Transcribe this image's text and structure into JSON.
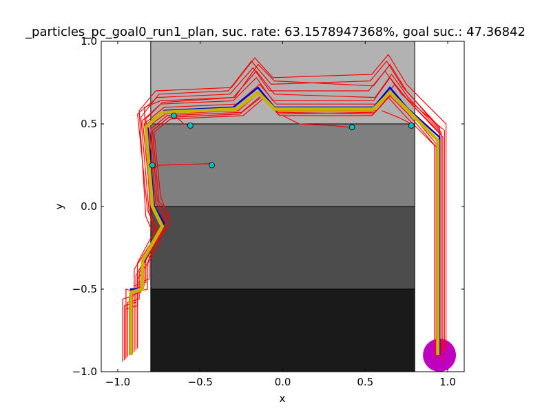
{
  "chart_data": {
    "type": "line",
    "title": "_particles_pc_goal0_run1_plan, suc. rate: 63.1578947368%, goal suc.: 47.36842",
    "xlabel": "x",
    "ylabel": "y",
    "xlim": [
      -1.1,
      1.1
    ],
    "ylim": [
      -1.0,
      1.0
    ],
    "x_ticks": [
      -1.0,
      -0.5,
      0.0,
      0.5,
      1.0
    ],
    "x_tick_labels": [
      "−1.0",
      "−0.5",
      "0.0",
      "0.5",
      "1.0"
    ],
    "y_ticks": [
      -1.0,
      -0.5,
      0.0,
      0.5,
      1.0
    ],
    "y_tick_labels": [
      "−1.0",
      "−0.5",
      "0.0",
      "0.5",
      "1.0"
    ],
    "regions": [
      {
        "name": "band-top",
        "x": [
          -0.8,
          0.8
        ],
        "y": [
          0.5,
          1.0
        ],
        "color": "#b2b2b2"
      },
      {
        "name": "band-upper-mid",
        "x": [
          -0.8,
          0.8
        ],
        "y": [
          0.0,
          0.5
        ],
        "color": "#7f7f7f"
      },
      {
        "name": "band-lower-mid",
        "x": [
          -0.8,
          0.8
        ],
        "y": [
          -0.5,
          0.0
        ],
        "color": "#4c4c4c"
      },
      {
        "name": "band-bottom",
        "x": [
          -0.8,
          0.8
        ],
        "y": [
          -1.0,
          -0.5
        ],
        "color": "#1a1a1a"
      }
    ],
    "goal": {
      "x": 0.95,
      "y": -0.9,
      "radius": 0.1,
      "color": "#c000c0"
    },
    "plan_path": {
      "x": [
        -0.92,
        -0.92,
        -0.85,
        -0.85,
        -0.72,
        -0.78,
        -0.82,
        -0.72,
        -0.3,
        -0.15,
        -0.05,
        0.55,
        0.65,
        0.75,
        0.95,
        0.95
      ],
      "y": [
        -0.9,
        -0.5,
        -0.5,
        -0.35,
        -0.1,
        0.0,
        0.5,
        0.58,
        0.6,
        0.72,
        0.6,
        0.6,
        0.72,
        0.6,
        0.42,
        -0.9
      ],
      "color": "#0000cc"
    },
    "mean_path": {
      "x": [
        -0.92,
        -0.92,
        -0.85,
        -0.85,
        -0.73,
        -0.79,
        -0.83,
        -0.73,
        -0.28,
        -0.15,
        -0.05,
        0.55,
        0.65,
        0.75,
        0.94,
        0.94
      ],
      "y": [
        -0.9,
        -0.52,
        -0.5,
        -0.33,
        -0.12,
        0.0,
        0.48,
        0.57,
        0.59,
        0.69,
        0.59,
        0.59,
        0.69,
        0.59,
        0.4,
        -0.9
      ],
      "color": "#c8b400"
    },
    "particle_paths": [
      {
        "x": [
          -0.95,
          -0.95,
          -0.88,
          -0.88,
          -0.74,
          -0.8,
          -0.85,
          -0.74,
          -0.3,
          -0.16,
          -0.06,
          0.55,
          0.65,
          0.76,
          0.96,
          0.96
        ],
        "y": [
          -0.92,
          -0.5,
          -0.52,
          -0.34,
          -0.08,
          0.02,
          0.52,
          0.62,
          0.64,
          0.78,
          0.64,
          0.64,
          0.78,
          0.64,
          0.44,
          -0.88
        ]
      },
      {
        "x": [
          -0.9,
          -0.9,
          -0.83,
          -0.83,
          -0.7,
          -0.76,
          -0.8,
          -0.7,
          -0.25,
          -0.12,
          -0.03,
          0.56,
          0.66,
          0.77,
          0.93,
          0.93
        ],
        "y": [
          -0.88,
          -0.48,
          -0.46,
          -0.3,
          -0.12,
          0.04,
          0.47,
          0.55,
          0.57,
          0.68,
          0.56,
          0.57,
          0.68,
          0.57,
          0.38,
          -0.92
        ]
      },
      {
        "x": [
          -0.97,
          -0.97,
          -0.9,
          -0.9,
          -0.76,
          -0.82,
          -0.88,
          -0.76,
          -0.32,
          -0.18,
          -0.08,
          0.52,
          0.62,
          0.72,
          0.98,
          0.98
        ],
        "y": [
          -0.94,
          -0.56,
          -0.54,
          -0.38,
          -0.16,
          -0.02,
          0.56,
          0.66,
          0.68,
          0.84,
          0.7,
          0.7,
          0.82,
          0.68,
          0.46,
          -0.86
        ]
      },
      {
        "x": [
          -0.93,
          -0.93,
          -0.86,
          -0.86,
          -0.72,
          -0.78,
          -0.84,
          -0.72,
          -0.28,
          -0.14,
          -0.04,
          0.58,
          0.68,
          0.78,
          0.97,
          0.97
        ],
        "y": [
          -0.9,
          -0.54,
          -0.52,
          -0.36,
          -0.14,
          0.0,
          0.5,
          0.6,
          0.62,
          0.74,
          0.62,
          0.62,
          0.74,
          0.62,
          0.42,
          -0.94
        ]
      },
      {
        "x": [
          -0.88,
          -0.88,
          -0.81,
          -0.81,
          -0.68,
          -0.74,
          -0.78,
          -0.68,
          -0.24,
          -0.11,
          -0.02,
          0.54,
          0.64,
          0.74,
          0.92,
          0.92
        ],
        "y": [
          -0.86,
          -0.46,
          -0.44,
          -0.28,
          -0.1,
          0.06,
          0.45,
          0.53,
          0.55,
          0.66,
          0.55,
          0.55,
          0.66,
          0.55,
          0.37,
          -0.9
        ]
      },
      {
        "x": [
          -0.94,
          -0.94,
          -0.87,
          -0.87,
          -0.75,
          -0.81,
          -0.86,
          -0.75,
          -0.33,
          -0.19,
          -0.07,
          0.53,
          0.63,
          0.73,
          0.95,
          0.95
        ],
        "y": [
          -0.91,
          -0.58,
          -0.56,
          -0.4,
          -0.18,
          -0.04,
          0.54,
          0.68,
          0.7,
          0.88,
          0.74,
          0.76,
          0.88,
          0.72,
          0.48,
          -0.85
        ]
      },
      {
        "x": [
          -0.91,
          -0.91,
          -0.84,
          -0.84,
          -0.71,
          -0.77,
          -0.81,
          -0.71,
          -0.27,
          -0.13,
          -0.04,
          0.57,
          0.67,
          0.77,
          0.94,
          0.94
        ],
        "y": [
          -0.89,
          -0.5,
          -0.48,
          -0.32,
          -0.06,
          0.02,
          0.49,
          0.56,
          0.58,
          0.7,
          0.58,
          0.58,
          0.7,
          0.58,
          0.39,
          -0.91
        ]
      },
      {
        "x": [
          -0.96,
          -0.96,
          -0.89,
          -0.89,
          -0.77,
          -0.83,
          -0.87,
          -0.77,
          -0.31,
          -0.17,
          -0.06,
          0.54,
          0.64,
          0.75,
          0.99,
          0.99
        ],
        "y": [
          -0.93,
          -0.6,
          -0.58,
          -0.42,
          -0.2,
          -0.06,
          0.58,
          0.7,
          0.72,
          0.9,
          0.78,
          0.8,
          0.92,
          0.74,
          0.5,
          -0.88
        ]
      },
      {
        "x": [
          -0.89,
          -0.89,
          -0.82,
          -0.82,
          -0.69,
          -0.75,
          -0.79,
          -0.69,
          -0.26,
          -0.12,
          -0.03,
          0.55,
          0.65,
          0.76,
          0.93,
          0.93
        ],
        "y": [
          -0.87,
          -0.52,
          -0.5,
          -0.34,
          -0.04,
          0.03,
          0.46,
          0.54,
          0.56,
          0.67,
          0.57,
          0.56,
          0.67,
          0.56,
          0.36,
          -0.89
        ]
      },
      {
        "x": [
          -0.95,
          -0.95,
          -0.88,
          -0.88,
          -0.74,
          -0.8,
          -0.84,
          -0.74,
          -0.3,
          -0.16,
          -0.05,
          0.56,
          0.66,
          0.76,
          0.96,
          0.96
        ],
        "y": [
          -0.92,
          -0.62,
          -0.6,
          -0.44,
          -0.22,
          -0.08,
          0.6,
          0.64,
          0.66,
          0.82,
          0.68,
          0.66,
          0.8,
          0.66,
          0.45,
          -0.87
        ]
      },
      {
        "x": [
          -0.92,
          -0.92,
          -0.85,
          -0.85,
          -0.73,
          -0.79,
          -0.83,
          -0.73,
          -0.29,
          -0.15,
          -0.05,
          0.55,
          0.65,
          0.75,
          0.95,
          0.95
        ],
        "y": [
          -0.9,
          -0.5,
          -0.5,
          -0.36,
          -0.12,
          0.0,
          0.53,
          0.63,
          0.66,
          0.86,
          0.76,
          0.73,
          0.86,
          0.7,
          0.47,
          -0.9
        ]
      }
    ],
    "partial_paths": [
      {
        "x": [
          -0.78,
          -0.78,
          -0.75,
          -0.43
        ],
        "y": [
          0.25,
          0.23,
          0.25,
          0.26
        ]
      },
      {
        "x": [
          0.0,
          0.1,
          0.3,
          0.4
        ],
        "y": [
          0.55,
          0.5,
          0.49,
          0.48
        ]
      },
      {
        "x": [
          -0.66,
          -0.62,
          -0.6,
          -0.56
        ],
        "y": [
          0.55,
          0.52,
          0.5,
          0.49
        ]
      },
      {
        "x": [
          0.6,
          0.7,
          0.78
        ],
        "y": [
          0.58,
          0.54,
          0.5
        ]
      }
    ],
    "particle_color": "#ff0000",
    "particle_ends": {
      "x": [
        -0.79,
        -0.66,
        -0.56,
        -0.43,
        0.42,
        0.78
      ],
      "y": [
        0.25,
        0.55,
        0.49,
        0.25,
        0.48,
        0.49
      ],
      "color": "#00bfbf"
    }
  }
}
